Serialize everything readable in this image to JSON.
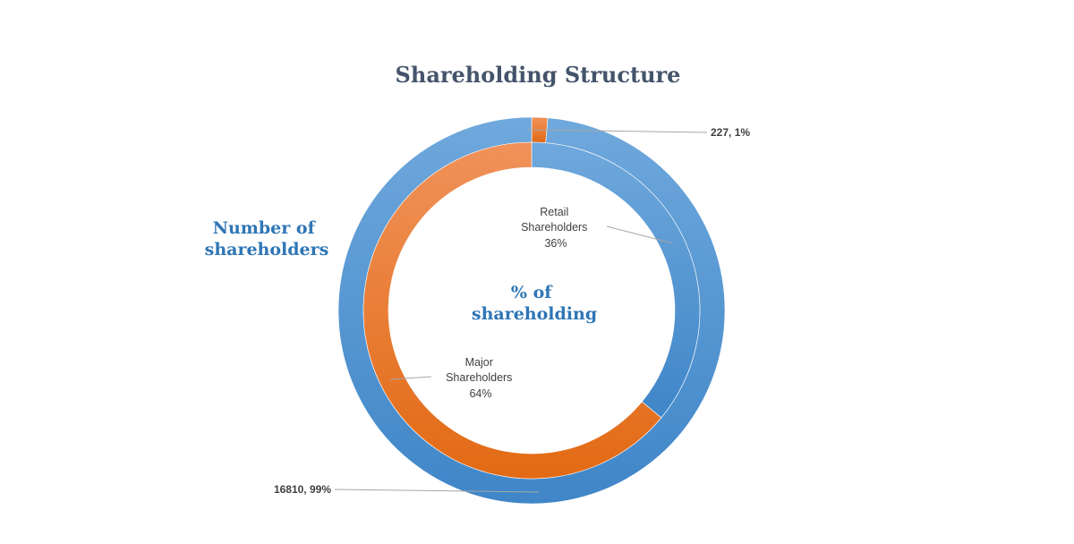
{
  "chart_data": [
    {
      "type": "donut",
      "title": "Shareholding Structure",
      "ring": "outer",
      "ring_label": "Number of shareholders",
      "slices": [
        {
          "name": "",
          "value": 227,
          "percent": 1,
          "label": "227, 1%",
          "color": "#e8752a"
        },
        {
          "name": "",
          "value": 16810,
          "percent": 99,
          "label": "16810, 99%",
          "color": "#5b9bd5"
        }
      ]
    },
    {
      "type": "donut",
      "ring": "inner",
      "ring_label": "% of shareholding",
      "slices": [
        {
          "name": "Retail Shareholders",
          "percent": 36,
          "label_lines": [
            "Retail",
            "Shareholders",
            "36%"
          ],
          "color": "#5b9bd5"
        },
        {
          "name": "Major Shareholders",
          "percent": 64,
          "label_lines": [
            "Major",
            "Shareholders",
            "64%"
          ],
          "color": "#e8752a"
        }
      ]
    }
  ],
  "title": "Shareholding Structure",
  "outer_ring_label_lines": [
    "Number of",
    "shareholders"
  ],
  "inner_ring_label_lines": [
    "% of",
    "shareholding"
  ]
}
